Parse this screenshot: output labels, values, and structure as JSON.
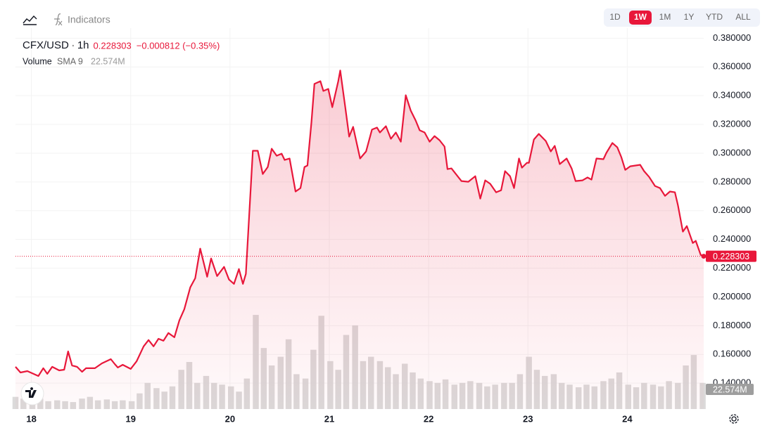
{
  "chart_data": {
    "type": "line",
    "indicators": "Indicators",
    "ranges": [
      "1D",
      "1W",
      "1M",
      "1Y",
      "YTD",
      "ALL"
    ],
    "active_range": 1,
    "interval": "1h",
    "change": "−0.000812 (−0.35%)",
    "volume_label": "Volume",
    "sma_label": "SMA 9",
    "sma_value": "22.574M",
    "x": [
      17.84,
      17.89,
      17.96,
      18.07,
      18.12,
      18.16,
      18.21,
      18.28,
      18.33,
      18.37,
      18.41,
      18.46,
      18.51,
      18.55,
      18.64,
      18.71,
      18.8,
      18.84,
      18.87,
      18.92,
      19.0,
      19.06,
      19.13,
      19.18,
      19.23,
      19.28,
      19.33,
      19.38,
      19.44,
      19.49,
      19.54,
      19.6,
      19.65,
      19.7,
      19.77,
      19.81,
      19.87,
      19.94,
      19.99,
      20.04,
      20.09,
      20.13,
      20.16,
      20.23,
      20.28,
      20.33,
      20.38,
      20.42,
      20.47,
      20.52,
      20.55,
      20.6,
      20.66,
      20.71,
      20.75,
      20.78,
      20.82,
      20.85,
      20.91,
      20.94,
      20.99,
      21.03,
      21.09,
      21.11,
      21.16,
      21.2,
      21.24,
      21.31,
      21.37,
      21.43,
      21.48,
      21.51,
      21.57,
      21.62,
      21.67,
      21.72,
      21.77,
      21.82,
      21.87,
      21.91,
      21.96,
      22.01,
      22.06,
      22.11,
      22.16,
      22.19,
      22.23,
      22.33,
      22.4,
      22.47,
      22.52,
      22.57,
      22.62,
      22.68,
      22.73,
      22.77,
      22.82,
      22.86,
      22.91,
      22.94,
      22.99,
      23.01,
      23.06,
      23.11,
      23.18,
      23.23,
      23.27,
      23.32,
      23.39,
      23.44,
      23.48,
      23.55,
      23.6,
      23.64,
      23.69,
      23.76,
      23.79,
      23.85,
      23.9,
      23.94,
      23.98,
      24.03,
      24.13,
      24.17,
      24.22,
      24.28,
      24.33,
      24.38,
      24.43,
      24.48,
      24.51,
      24.56,
      24.6,
      24.66,
      24.69,
      24.74,
      24.77
    ],
    "series": [
      {
        "name": "CFX/USD",
        "color": "#e8173a",
        "values": [
          0.1514,
          0.1474,
          0.1484,
          0.145,
          0.1504,
          0.1465,
          0.1514,
          0.1489,
          0.1494,
          0.1621,
          0.1523,
          0.1514,
          0.1479,
          0.1504,
          0.1504,
          0.1538,
          0.1567,
          0.1533,
          0.1509,
          0.1528,
          0.1499,
          0.1553,
          0.1656,
          0.17,
          0.1656,
          0.1709,
          0.1695,
          0.1749,
          0.1719,
          0.1837,
          0.1915,
          0.2067,
          0.213,
          0.2336,
          0.214,
          0.2268,
          0.2145,
          0.2209,
          0.2121,
          0.2091,
          0.2194,
          0.2091,
          0.216,
          0.3017,
          0.3017,
          0.2855,
          0.2904,
          0.3031,
          0.2982,
          0.2997,
          0.2953,
          0.2963,
          0.2733,
          0.2757,
          0.2904,
          0.2914,
          0.3217,
          0.3482,
          0.3501,
          0.3433,
          0.3447,
          0.332,
          0.3501,
          0.3575,
          0.3325,
          0.3115,
          0.3183,
          0.2963,
          0.3012,
          0.3164,
          0.3178,
          0.3144,
          0.3188,
          0.31,
          0.3144,
          0.308,
          0.3403,
          0.3296,
          0.3227,
          0.3159,
          0.3144,
          0.308,
          0.3119,
          0.309,
          0.3046,
          0.2889,
          0.2894,
          0.2806,
          0.2801,
          0.284,
          0.2684,
          0.2811,
          0.2787,
          0.2728,
          0.2742,
          0.2875,
          0.284,
          0.2757,
          0.2963,
          0.2899,
          0.2933,
          0.2933,
          0.3095,
          0.3134,
          0.3085,
          0.3012,
          0.3051,
          0.2924,
          0.2963,
          0.2894,
          0.2806,
          0.2811,
          0.2831,
          0.2816,
          0.2963,
          0.2958,
          0.3002,
          0.3071,
          0.3041,
          0.2973,
          0.2884,
          0.2909,
          0.2919,
          0.2875,
          0.2835,
          0.2772,
          0.2757,
          0.2703,
          0.2733,
          0.2728,
          0.264,
          0.2454,
          0.2493,
          0.2375,
          0.239,
          0.2292,
          0.228303
        ]
      },
      {
        "name": "Volume",
        "type": "bar",
        "axis": "y2",
        "color": "#d5d3d3",
        "x": [
          17.84,
          17.92,
          18.01,
          18.09,
          18.17,
          18.26,
          18.34,
          18.42,
          18.51,
          18.59,
          18.67,
          18.76,
          18.84,
          18.92,
          19.01,
          19.09,
          19.17,
          19.26,
          19.34,
          19.42,
          19.51,
          19.59,
          19.67,
          19.76,
          19.84,
          19.92,
          20.01,
          20.09,
          20.17,
          20.26,
          20.34,
          20.42,
          20.51,
          20.59,
          20.67,
          20.76,
          20.84,
          20.92,
          21.01,
          21.09,
          21.17,
          21.26,
          21.34,
          21.42,
          21.51,
          21.59,
          21.67,
          21.76,
          21.84,
          21.92,
          22.01,
          22.09,
          22.17,
          22.26,
          22.34,
          22.42,
          22.51,
          22.59,
          22.67,
          22.76,
          22.84,
          22.92,
          23.01,
          23.09,
          23.17,
          23.26,
          23.34,
          23.42,
          23.51,
          23.59,
          23.67,
          23.76,
          23.84,
          23.92,
          24.01,
          24.09,
          24.17,
          24.26,
          24.34,
          24.42,
          24.51,
          24.59,
          24.67,
          24.76
        ],
        "values": [
          14,
          12,
          10,
          12,
          9,
          10,
          9,
          8,
          12,
          14,
          10,
          11,
          9,
          10,
          9,
          18,
          30,
          24,
          20,
          26,
          45,
          54,
          30,
          38,
          30,
          28,
          26,
          20,
          35,
          108,
          70,
          50,
          60,
          80,
          40,
          35,
          68,
          107,
          55,
          45,
          85,
          96,
          55,
          60,
          55,
          48,
          40,
          52,
          42,
          35,
          32,
          30,
          34,
          28,
          30,
          32,
          30,
          26,
          28,
          30,
          30,
          40,
          60,
          45,
          38,
          40,
          30,
          28,
          25,
          28,
          26,
          32,
          35,
          42,
          28,
          25,
          30,
          28,
          26,
          32,
          30,
          50,
          62,
          30
        ]
      }
    ],
    "xlim": [
      17.84,
      24.77
    ],
    "xticks": [
      18,
      19,
      20,
      21,
      22,
      23,
      24
    ],
    "ylim": [
      0.122,
      0.387
    ],
    "yticks": [
      {
        "value": 0.38,
        "label": "0.380000"
      },
      {
        "value": 0.36,
        "label": "0.360000"
      },
      {
        "value": 0.34,
        "label": "0.340000"
      },
      {
        "value": 0.32,
        "label": "0.320000"
      },
      {
        "value": 0.3,
        "label": "0.300000"
      },
      {
        "value": 0.28,
        "label": "0.280000"
      },
      {
        "value": 0.26,
        "label": "0.260000"
      },
      {
        "value": 0.24,
        "label": "0.240000"
      },
      {
        "value": 0.22,
        "label": "0.220000"
      },
      {
        "value": 0.2,
        "label": "0.200000"
      },
      {
        "value": 0.18,
        "label": "0.180000"
      },
      {
        "value": 0.16,
        "label": "0.160000"
      },
      {
        "value": 0.14,
        "label": "0.140000"
      }
    ],
    "y2lim": [
      0,
      437
    ],
    "grid": true
  }
}
